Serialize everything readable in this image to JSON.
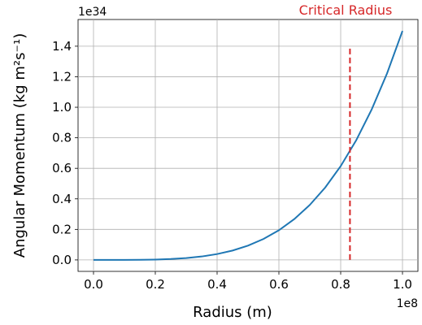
{
  "chart_data": {
    "type": "line",
    "xlabel": "Radius (m)",
    "ylabel": "Angular Momentum (kg m²s⁻¹)",
    "x_offset_label": "1e8",
    "y_offset_label": "1e34",
    "x": [
      0,
      0.05,
      0.1,
      0.15,
      0.2,
      0.25,
      0.3,
      0.35,
      0.4,
      0.45,
      0.5,
      0.55,
      0.6,
      0.65,
      0.7,
      0.75,
      0.8,
      0.85,
      0.9,
      0.95,
      1.0
    ],
    "series": [
      {
        "name": "Angular Momentum",
        "color": "#1f77b4",
        "values": [
          0,
          1e-05,
          0.00015,
          0.00076,
          0.0024,
          0.0059,
          0.0122,
          0.0225,
          0.0384,
          0.0615,
          0.0938,
          0.1373,
          0.1944,
          0.2678,
          0.3602,
          0.4746,
          0.6144,
          0.783,
          0.9842,
          1.2218,
          1.5
        ]
      }
    ],
    "vline": {
      "label": "Critical Radius",
      "x": 0.83,
      "y": [
        0,
        1.4
      ],
      "color": "#d62728"
    },
    "xlim": [
      -0.05,
      1.05
    ],
    "ylim": [
      -0.075,
      1.575
    ],
    "xticks": [
      {
        "value": 0,
        "label": "0.0"
      },
      0.2,
      0.4,
      0.6,
      0.8,
      {
        "value": 1,
        "label": "1.0"
      }
    ],
    "yticks": [
      {
        "value": 0,
        "label": "0.0"
      },
      0.2,
      0.4,
      0.6,
      0.8,
      {
        "value": 1,
        "label": "1.0"
      },
      1.2,
      1.4
    ],
    "grid": true
  }
}
